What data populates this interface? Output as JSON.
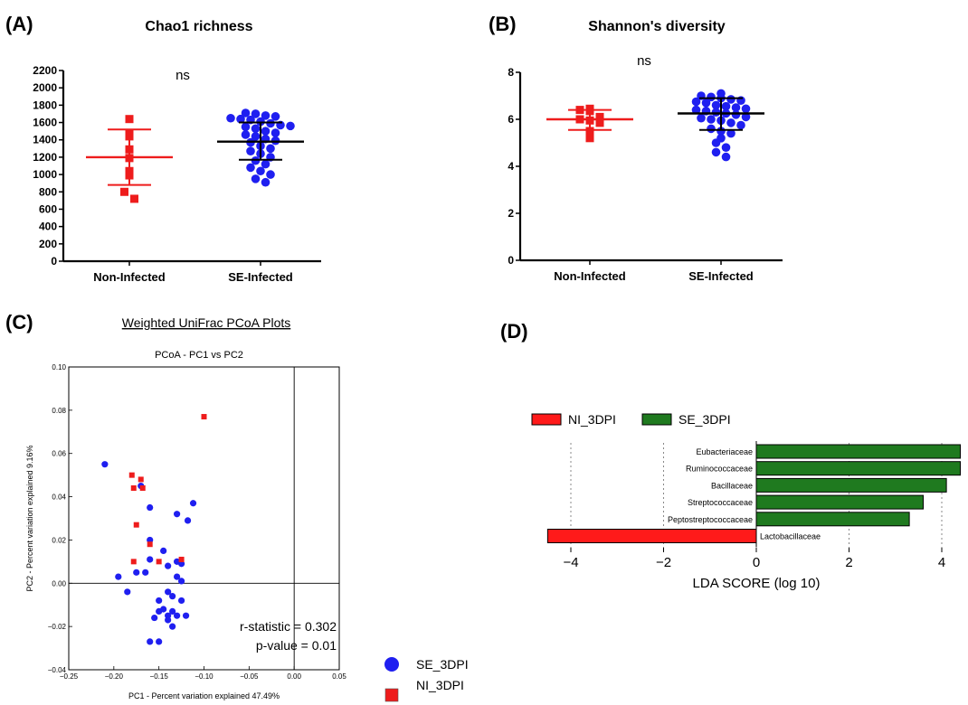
{
  "panels": {
    "A": {
      "letter": "(A)",
      "title": "Chao1 richness",
      "annotation": "ns"
    },
    "B": {
      "letter": "(B)",
      "title": "Shannon's diversity",
      "annotation": "ns"
    },
    "C": {
      "letter": "(C)",
      "heading": "Weighted UniFrac PCoA Plots",
      "plot_title": "PCoA - PC1 vs PC2",
      "stats": [
        "r-statistic = 0.302",
        "p-value = 0.01"
      ],
      "legend": [
        "SE_3DPI",
        "NI_3DPI"
      ]
    },
    "D": {
      "letter": "(D)"
    }
  },
  "colors": {
    "red": "#ee1c1c",
    "blue": "#1f1ff0",
    "green": "#1f7a1f",
    "lefse_red": "#ff1a1a"
  },
  "chart_data": [
    {
      "id": "A",
      "type": "scatter",
      "title": "Chao1 richness",
      "xlabel": "",
      "ylabel": "",
      "categories": [
        "Non-Infected",
        "SE-Infected"
      ],
      "ylim": [
        0,
        2200
      ],
      "yticks": [
        0,
        200,
        400,
        600,
        800,
        1000,
        1200,
        1400,
        1600,
        1800,
        2000,
        2200
      ],
      "series": [
        {
          "category": "Non-Infected",
          "color": "red",
          "marker": "square",
          "values": [
            1640,
            1480,
            1440,
            1290,
            1190,
            1040,
            990,
            800,
            720
          ],
          "mean": 1200,
          "err_low": 880,
          "err_high": 1520
        },
        {
          "category": "SE-Infected",
          "color": "blue",
          "marker": "circle",
          "values": [
            1710,
            1700,
            1680,
            1670,
            1650,
            1640,
            1630,
            1610,
            1590,
            1570,
            1560,
            1550,
            1530,
            1500,
            1480,
            1460,
            1440,
            1410,
            1390,
            1370,
            1330,
            1300,
            1270,
            1240,
            1200,
            1160,
            1120,
            1080,
            1040,
            1000,
            950,
            910
          ],
          "mean": 1380,
          "err_low": 1170,
          "err_high": 1600
        }
      ]
    },
    {
      "id": "B",
      "type": "scatter",
      "title": "Shannon's diversity",
      "xlabel": "",
      "ylabel": "",
      "categories": [
        "Non-Infected",
        "SE-Infected"
      ],
      "ylim": [
        0,
        8
      ],
      "yticks": [
        0,
        2,
        4,
        6,
        8
      ],
      "series": [
        {
          "category": "Non-Infected",
          "color": "red",
          "marker": "square",
          "values": [
            6.45,
            6.4,
            6.35,
            6.1,
            6.0,
            5.95,
            5.85,
            5.5,
            5.2
          ],
          "mean": 6.0,
          "err_low": 5.55,
          "err_high": 6.4
        },
        {
          "category": "SE-Infected",
          "color": "blue",
          "marker": "circle",
          "values": [
            7.1,
            7.0,
            6.95,
            6.9,
            6.85,
            6.8,
            6.75,
            6.7,
            6.6,
            6.55,
            6.5,
            6.45,
            6.4,
            6.35,
            6.3,
            6.25,
            6.2,
            6.1,
            6.05,
            6.0,
            5.95,
            5.85,
            5.75,
            5.6,
            5.5,
            5.4,
            5.2,
            5.0,
            4.8,
            4.6,
            4.4
          ],
          "mean": 6.25,
          "err_low": 5.55,
          "err_high": 6.9
        }
      ]
    },
    {
      "id": "C",
      "type": "scatter",
      "title": "PCoA - PC1 vs PC2",
      "xlabel": "PC1 - Percent variation explained 47.49%",
      "ylabel": "PC2 - Percent variation explained 9.16%",
      "xlim": [
        -0.25,
        0.05
      ],
      "ylim": [
        -0.04,
        0.1
      ],
      "xticks": [
        -0.25,
        -0.2,
        -0.15,
        -0.1,
        -0.05,
        0.0,
        0.05
      ],
      "xtick_labels": [
        "−0.25",
        "−0.20",
        "−0.15",
        "−0.10",
        "−0.05",
        "0.00",
        "0.05"
      ],
      "yticks": [
        -0.04,
        -0.02,
        0.0,
        0.02,
        0.04,
        0.06,
        0.08,
        0.1
      ],
      "ytick_labels": [
        "−0.04",
        "−0.02",
        "0.00",
        "0.02",
        "0.04",
        "0.06",
        "0.08",
        "0.10"
      ],
      "series": [
        {
          "name": "SE_3DPI",
          "color": "blue",
          "marker": "circle",
          "points": [
            [
              -0.21,
              0.055
            ],
            [
              -0.17,
              0.045
            ],
            [
              -0.16,
              0.035
            ],
            [
              -0.112,
              0.037
            ],
            [
              -0.13,
              0.032
            ],
            [
              -0.118,
              0.029
            ],
            [
              -0.16,
              0.02
            ],
            [
              -0.145,
              0.015
            ],
            [
              -0.13,
              0.01
            ],
            [
              -0.125,
              0.009
            ],
            [
              -0.16,
              0.011
            ],
            [
              -0.14,
              0.008
            ],
            [
              -0.195,
              0.003
            ],
            [
              -0.175,
              0.005
            ],
            [
              -0.165,
              0.005
            ],
            [
              -0.13,
              0.003
            ],
            [
              -0.125,
              0.001
            ],
            [
              -0.185,
              -0.004
            ],
            [
              -0.14,
              -0.004
            ],
            [
              -0.135,
              -0.006
            ],
            [
              -0.15,
              -0.008
            ],
            [
              -0.125,
              -0.008
            ],
            [
              -0.145,
              -0.012
            ],
            [
              -0.135,
              -0.013
            ],
            [
              -0.15,
              -0.013
            ],
            [
              -0.14,
              -0.015
            ],
            [
              -0.155,
              -0.016
            ],
            [
              -0.13,
              -0.015
            ],
            [
              -0.12,
              -0.015
            ],
            [
              -0.14,
              -0.017
            ],
            [
              -0.135,
              -0.02
            ],
            [
              -0.15,
              -0.027
            ],
            [
              -0.16,
              -0.027
            ]
          ]
        },
        {
          "name": "NI_3DPI",
          "color": "red",
          "marker": "square",
          "points": [
            [
              -0.1,
              0.077
            ],
            [
              -0.18,
              0.05
            ],
            [
              -0.17,
              0.048
            ],
            [
              -0.178,
              0.044
            ],
            [
              -0.168,
              0.044
            ],
            [
              -0.175,
              0.027
            ],
            [
              -0.16,
              0.018
            ],
            [
              -0.178,
              0.01
            ],
            [
              -0.15,
              0.01
            ],
            [
              -0.125,
              0.011
            ]
          ]
        }
      ]
    },
    {
      "id": "D",
      "type": "bar",
      "orientation": "horizontal",
      "title": "",
      "xlabel": "LDA SCORE (log 10)",
      "ylabel": "",
      "xlim": [
        -5,
        4.5
      ],
      "xticks": [
        -4,
        -2,
        0,
        2,
        4
      ],
      "xtick_labels": [
        "−4",
        "−2",
        "0",
        "2",
        "4"
      ],
      "legend": [
        {
          "name": "NI_3DPI",
          "color": "lefse_red"
        },
        {
          "name": "SE_3DPI",
          "color": "green"
        }
      ],
      "categories": [
        "Eubacteriaceae",
        "Ruminococcaceae",
        "Bacillaceae",
        "Streptococcaceae",
        "Peptostreptococcaceae",
        "Lactobacillaceae"
      ],
      "values": [
        4.4,
        4.4,
        4.1,
        3.6,
        3.3,
        -4.5
      ],
      "groups": [
        "SE_3DPI",
        "SE_3DPI",
        "SE_3DPI",
        "SE_3DPI",
        "SE_3DPI",
        "NI_3DPI"
      ]
    }
  ]
}
